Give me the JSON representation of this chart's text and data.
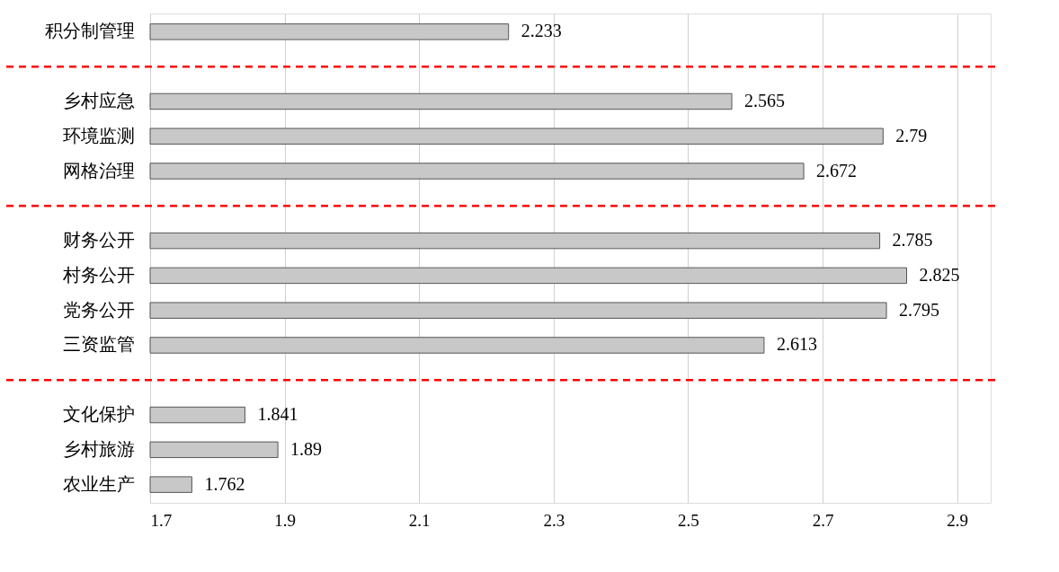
{
  "chart_data": {
    "type": "bar",
    "orientation": "horizontal",
    "categories": [
      "积分制管理",
      null,
      "乡村应急",
      "环境监测",
      "网格治理",
      null,
      "财务公开",
      "村务公开",
      "党务公开",
      "三资监管",
      null,
      "文化保护",
      "乡村旅游",
      "农业生产"
    ],
    "values": [
      2.233,
      null,
      2.565,
      2.79,
      2.672,
      null,
      2.785,
      2.825,
      2.795,
      2.613,
      null,
      1.841,
      1.89,
      1.762
    ],
    "color": "#c8c8c8",
    "xlim": [
      1.7,
      2.95
    ],
    "xticks": [
      1.7,
      1.9,
      2.1,
      2.3,
      2.5,
      2.7,
      2.9
    ],
    "grid": "x",
    "data_labels": true
  }
}
